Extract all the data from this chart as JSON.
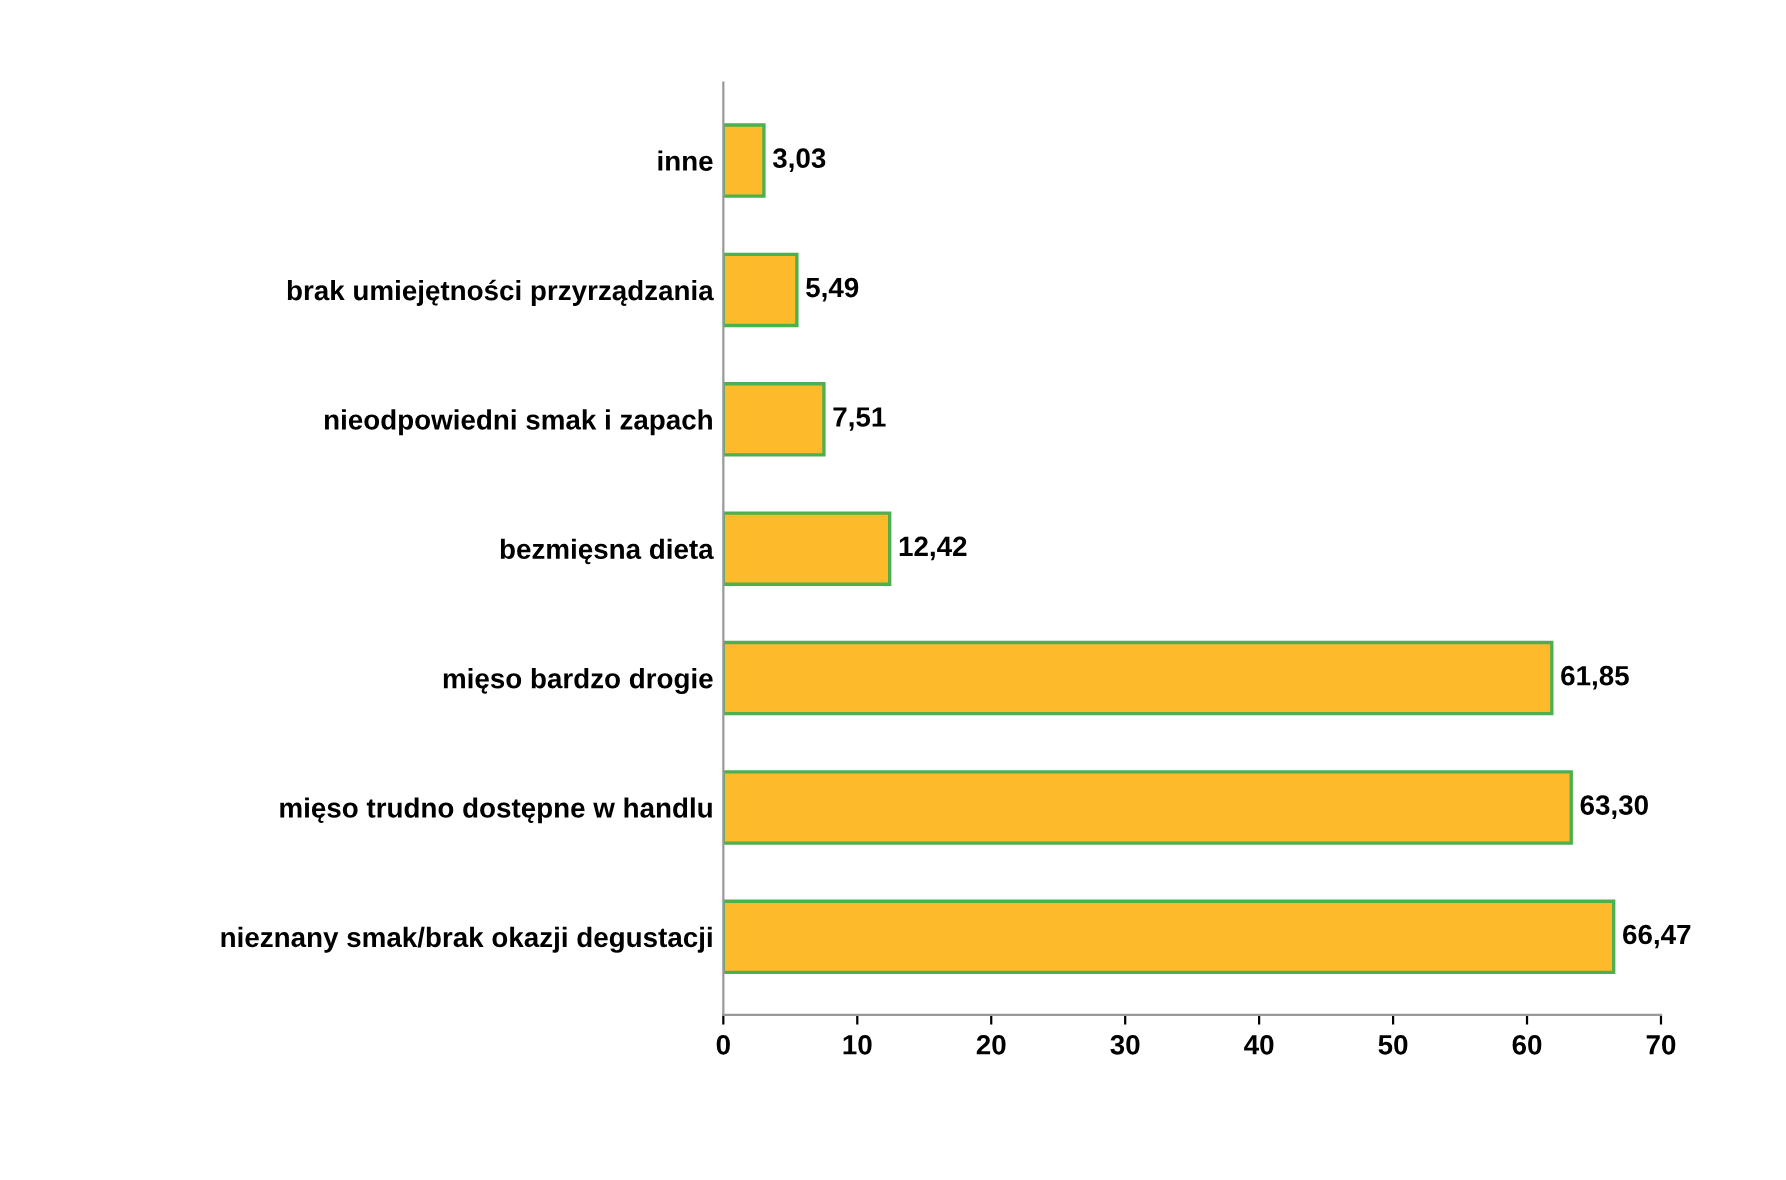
{
  "chart_data": {
    "type": "bar",
    "orientation": "horizontal",
    "categories": [
      "inne",
      "brak umiejętności przyrządzania",
      "nieodpowiedni smak i zapach",
      "bezmięsna dieta",
      "mięso bardzo drogie",
      "mięso trudno dostępne w handlu",
      "nieznany smak/brak okazji degustacji"
    ],
    "values": [
      3.03,
      5.49,
      7.51,
      12.42,
      61.85,
      63.3,
      66.47
    ],
    "value_labels": [
      "3,03",
      "5,49",
      "7,51",
      "12,42",
      "61,85",
      "63,30",
      "66,47"
    ],
    "color": "#fdbb2b",
    "xlim": [
      0,
      70
    ],
    "xticks": [
      0,
      10,
      20,
      30,
      40,
      50,
      60,
      70
    ],
    "grid": false
  }
}
